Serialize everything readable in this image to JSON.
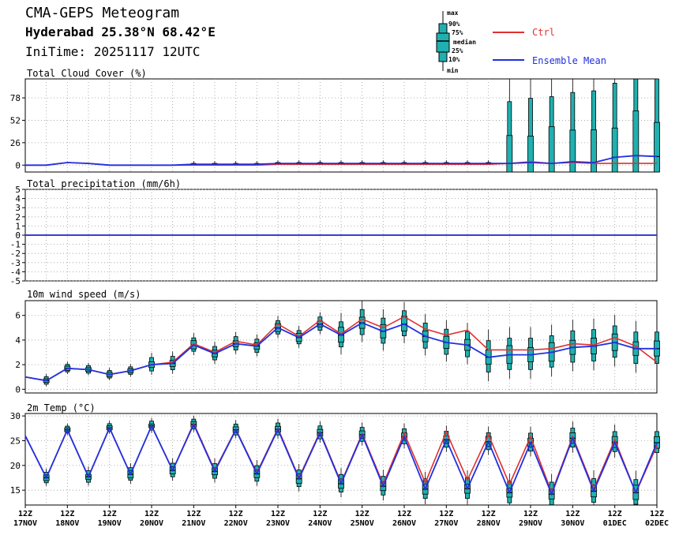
{
  "header": {
    "title": "CMA-GEPS Meteogram",
    "location": "Hyderabad 25.38°N 68.42°E",
    "init_time": "IniTime: 20251117 12UTC"
  },
  "legend": {
    "box_labels": [
      "max",
      "90%",
      "75%",
      "median",
      "25%",
      "10%",
      "min"
    ],
    "ctrl_label": "Ctrl",
    "mean_label": "Ensemble Mean",
    "ctrl_color": "#e03030",
    "mean_color": "#2030e0",
    "box_color": "#20b0b0"
  },
  "chart_data": [
    {
      "type": "line",
      "title": "Total Cloud Cover (%)",
      "ylim": [
        -8,
        100
      ],
      "yticks": [
        0,
        26,
        52,
        78
      ],
      "x": [
        "17NOV 12Z",
        "18NOV 00Z",
        "18NOV 12Z",
        "19NOV 00Z",
        "19NOV 12Z",
        "20NOV 00Z",
        "20NOV 12Z",
        "21NOV 00Z",
        "21NOV 12Z",
        "22NOV 00Z",
        "22NOV 12Z",
        "23NOV 00Z",
        "23NOV 12Z",
        "24NOV 00Z",
        "24NOV 12Z",
        "25NOV 00Z",
        "25NOV 12Z",
        "26NOV 00Z",
        "26NOV 12Z",
        "27NOV 00Z",
        "27NOV 12Z",
        "28NOV 00Z",
        "28NOV 12Z",
        "29NOV 00Z",
        "29NOV 12Z",
        "30NOV 00Z",
        "30NOV 12Z",
        "01DEC 00Z",
        "01DEC 12Z",
        "02DEC 00Z",
        "02DEC 12Z"
      ],
      "series": [
        {
          "name": "Ctrl",
          "values": [
            0,
            0,
            3,
            2,
            0,
            0,
            0,
            0,
            0,
            0,
            0,
            0,
            1,
            1,
            1,
            1,
            1,
            1,
            1,
            1,
            1,
            1,
            1,
            2,
            4,
            2,
            3,
            2,
            2,
            2,
            2
          ]
        },
        {
          "name": "Ensemble Mean",
          "values": [
            0,
            0,
            3,
            2,
            0,
            0,
            0,
            0,
            1,
            1,
            1,
            1,
            2,
            2,
            2,
            2,
            2,
            2,
            2,
            2,
            2,
            2,
            2,
            2,
            3,
            2,
            4,
            3,
            9,
            11,
            10
          ]
        }
      ]
    },
    {
      "type": "line",
      "title": "Total precipitation (mm/6h)",
      "ylim": [
        -5,
        5
      ],
      "yticks": [
        -5,
        -4,
        -3,
        -2,
        -1,
        0,
        1,
        2,
        3,
        4,
        5
      ],
      "x": [
        "17NOV 12Z",
        "02DEC 12Z"
      ],
      "series": [
        {
          "name": "Ctrl",
          "values": [
            0,
            0
          ]
        },
        {
          "name": "Ensemble Mean",
          "values": [
            0,
            0
          ]
        }
      ]
    },
    {
      "type": "line",
      "title": "10m wind speed (m/s)",
      "ylim": [
        -0.3,
        7.2
      ],
      "yticks": [
        0,
        2,
        4,
        6
      ],
      "x": [
        "17NOV 12Z",
        "18NOV 00Z",
        "18NOV 12Z",
        "19NOV 00Z",
        "19NOV 12Z",
        "20NOV 00Z",
        "20NOV 12Z",
        "21NOV 00Z",
        "21NOV 12Z",
        "22NOV 00Z",
        "22NOV 12Z",
        "23NOV 00Z",
        "23NOV 12Z",
        "24NOV 00Z",
        "24NOV 12Z",
        "25NOV 00Z",
        "25NOV 12Z",
        "26NOV 00Z",
        "26NOV 12Z",
        "27NOV 00Z",
        "27NOV 12Z",
        "28NOV 00Z",
        "28NOV 12Z",
        "29NOV 00Z",
        "29NOV 12Z",
        "30NOV 00Z",
        "30NOV 12Z",
        "01DEC 00Z",
        "01DEC 12Z",
        "02DEC 00Z",
        "02DEC 12Z"
      ],
      "series": [
        {
          "name": "Ctrl",
          "values": [
            1.0,
            0.7,
            1.7,
            1.6,
            1.2,
            1.5,
            2.0,
            2.2,
            3.7,
            3.0,
            3.9,
            3.6,
            5.3,
            4.3,
            5.6,
            4.5,
            5.7,
            5.0,
            5.9,
            4.9,
            4.4,
            4.8,
            3.2,
            3.2,
            3.2,
            3.3,
            3.7,
            3.6,
            4.2,
            3.5,
            2.2
          ]
        },
        {
          "name": "Ensemble Mean",
          "values": [
            1.0,
            0.7,
            1.7,
            1.6,
            1.2,
            1.5,
            2.0,
            2.1,
            3.6,
            2.9,
            3.7,
            3.5,
            5.0,
            4.2,
            5.3,
            4.4,
            5.4,
            4.7,
            5.3,
            4.3,
            3.8,
            3.6,
            2.6,
            2.8,
            2.8,
            3.0,
            3.4,
            3.5,
            3.8,
            3.3,
            3.3
          ]
        }
      ]
    },
    {
      "type": "line",
      "title": "2m Temp (°C)",
      "ylim": [
        12,
        30.5
      ],
      "yticks": [
        15,
        20,
        25,
        30
      ],
      "x": [
        "17NOV 12Z",
        "18NOV 00Z",
        "18NOV 12Z",
        "19NOV 00Z",
        "19NOV 12Z",
        "20NOV 00Z",
        "20NOV 12Z",
        "21NOV 00Z",
        "21NOV 12Z",
        "22NOV 00Z",
        "22NOV 12Z",
        "23NOV 00Z",
        "23NOV 12Z",
        "24NOV 00Z",
        "24NOV 12Z",
        "25NOV 00Z",
        "25NOV 12Z",
        "26NOV 00Z",
        "26NOV 12Z",
        "27NOV 00Z",
        "27NOV 12Z",
        "28NOV 00Z",
        "28NOV 12Z",
        "29NOV 00Z",
        "29NOV 12Z",
        "30NOV 00Z",
        "30NOV 12Z",
        "01DEC 00Z",
        "01DEC 12Z",
        "02DEC 00Z",
        "02DEC 12Z"
      ],
      "series": [
        {
          "name": "Ctrl",
          "values": [
            26.0,
            17.5,
            27.2,
            17.7,
            27.6,
            18.2,
            28.0,
            19.0,
            28.5,
            19.0,
            27.3,
            18.5,
            27.5,
            17.5,
            26.8,
            16.5,
            26.4,
            16.2,
            26.5,
            16.5,
            26.8,
            17.0,
            26.2,
            16.2,
            25.8,
            14.5,
            25.8,
            15.2,
            25.2,
            14.5,
            24.0
          ]
        },
        {
          "name": "Ensemble Mean",
          "values": [
            26.0,
            17.5,
            27.2,
            17.7,
            27.6,
            18.2,
            28.0,
            19.0,
            28.3,
            18.8,
            27.2,
            18.3,
            27.3,
            17.3,
            26.6,
            16.3,
            26.2,
            15.8,
            25.8,
            15.2,
            25.2,
            15.3,
            24.8,
            14.5,
            24.6,
            14.2,
            25.5,
            14.8,
            24.7,
            14.5,
            24.6
          ]
        }
      ]
    }
  ],
  "panels": [
    {
      "title": "Total Cloud Cover (%)",
      "ytick_labels": [
        "0",
        "26",
        "52",
        "78"
      ]
    },
    {
      "title": "Total precipitation (mm/6h)",
      "ytick_labels": [
        "-5",
        "-4",
        "-3",
        "-2",
        "-1",
        "0",
        "1",
        "2",
        "3",
        "4",
        "5"
      ]
    },
    {
      "title": "10m wind speed (m/s)",
      "ytick_labels": [
        "0",
        "2",
        "4",
        "6"
      ]
    },
    {
      "title": "2m Temp (°C)",
      "ytick_labels": [
        "15",
        "20",
        "25",
        "30"
      ]
    }
  ],
  "xaxis": {
    "hour_label": "12Z",
    "day_labels": [
      "17NOV",
      "18NOV",
      "19NOV",
      "20NOV",
      "21NOV",
      "22NOV",
      "23NOV",
      "24NOV",
      "25NOV",
      "26NOV",
      "27NOV",
      "28NOV",
      "29NOV",
      "30NOV",
      "01DEC",
      "02DEC"
    ]
  }
}
